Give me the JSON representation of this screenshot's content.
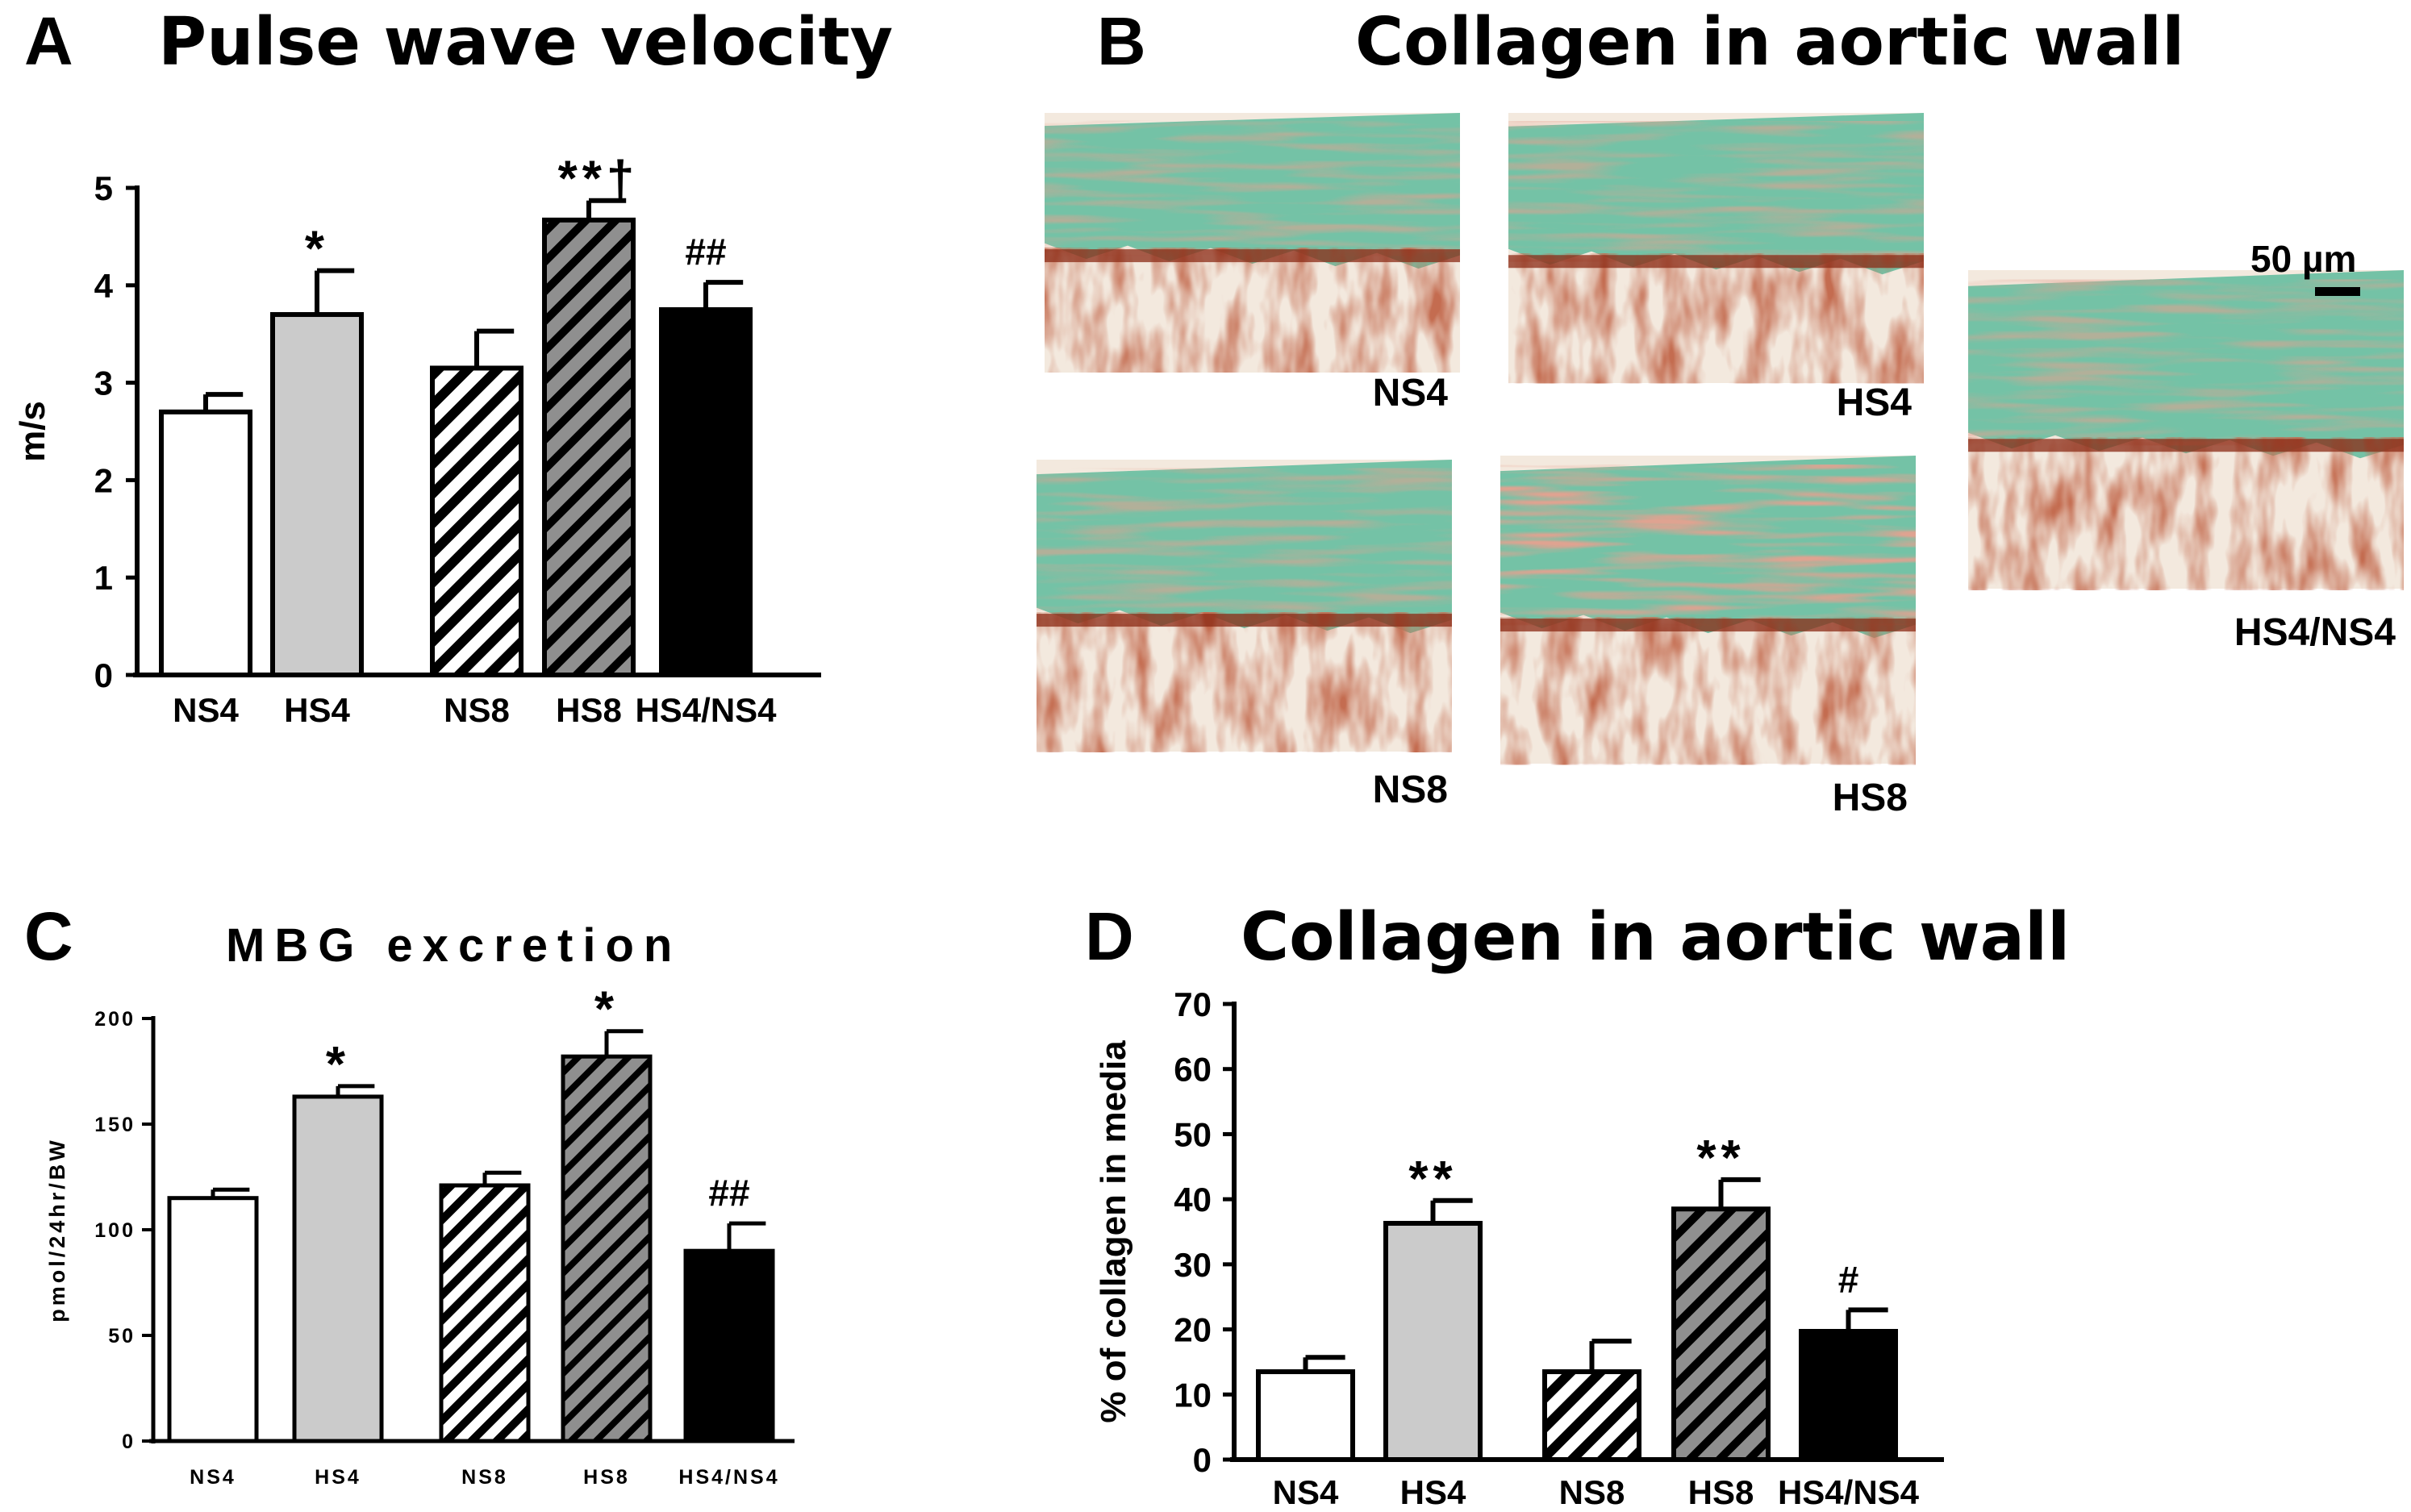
{
  "panels": {
    "A": {
      "letter": "A",
      "title": "Pulse wave velocity"
    },
    "B": {
      "letter": "B",
      "title": "Collagen in aortic wall"
    },
    "C": {
      "letter": "C",
      "title": "MBG excretion"
    },
    "D": {
      "letter": "D",
      "title": "Collagen in aortic wall"
    }
  },
  "micrographs": {
    "scale_bar_label": "50 µm",
    "images": [
      {
        "label": "NS4"
      },
      {
        "label": "HS4"
      },
      {
        "label": "NS8"
      },
      {
        "label": "HS8"
      },
      {
        "label": "HS4/NS4"
      }
    ],
    "colors": {
      "media": "#74c2a6",
      "adventitia": "#8b2a14",
      "background": "#f3e9de"
    }
  },
  "fill_styles": {
    "NS4": "white",
    "HS4": "lightgray",
    "NS8": "hatch-white",
    "HS8": "hatch-gray",
    "HS4/NS4": "black"
  },
  "colors": {
    "lightgray": "#cbcbcb",
    "hatch_gray": "#8f8f8f",
    "black": "#000000",
    "white": "#ffffff"
  },
  "chart_data": [
    {
      "panel": "A",
      "type": "bar",
      "title": "Pulse wave velocity",
      "ylabel": "m/s",
      "xlabel": "",
      "ylim": [
        0,
        5
      ],
      "yticks": [
        0,
        1,
        2,
        3,
        4,
        5
      ],
      "categories": [
        "NS4",
        "HS4",
        "NS8",
        "HS8",
        "HS4/NS4"
      ],
      "values": [
        2.7,
        3.7,
        3.15,
        4.67,
        3.75
      ],
      "errors": [
        0.18,
        0.45,
        0.38,
        0.2,
        0.28
      ],
      "annotations": [
        "",
        "*",
        "",
        "**†",
        "##"
      ],
      "grid": false
    },
    {
      "panel": "C",
      "type": "bar",
      "title": "MBG excretion",
      "ylabel": "pmol/24hr/BW",
      "xlabel": "",
      "ylim": [
        0,
        200
      ],
      "yticks": [
        0,
        50,
        100,
        150,
        200
      ],
      "categories": [
        "NS4",
        "HS4",
        "NS8",
        "HS8",
        "HS4/NS4"
      ],
      "values": [
        115,
        163,
        121,
        182,
        90
      ],
      "errors": [
        4,
        5,
        6,
        12,
        13
      ],
      "annotations": [
        "",
        "*",
        "",
        "*",
        "##"
      ],
      "grid": false
    },
    {
      "panel": "D",
      "type": "bar",
      "title": "Collagen in aortic wall",
      "ylabel": "% of collagen in media",
      "xlabel": "",
      "ylim": [
        0,
        70
      ],
      "yticks": [
        0,
        10,
        20,
        30,
        40,
        50,
        60,
        70
      ],
      "categories": [
        "NS4",
        "HS4",
        "NS8",
        "HS8",
        "HS4/NS4"
      ],
      "values": [
        13.5,
        36.3,
        13.5,
        38.5,
        19.7
      ],
      "errors": [
        2.2,
        3.5,
        4.7,
        4.5,
        3.3
      ],
      "annotations": [
        "",
        "**",
        "",
        "**",
        "#"
      ],
      "grid": false
    }
  ]
}
